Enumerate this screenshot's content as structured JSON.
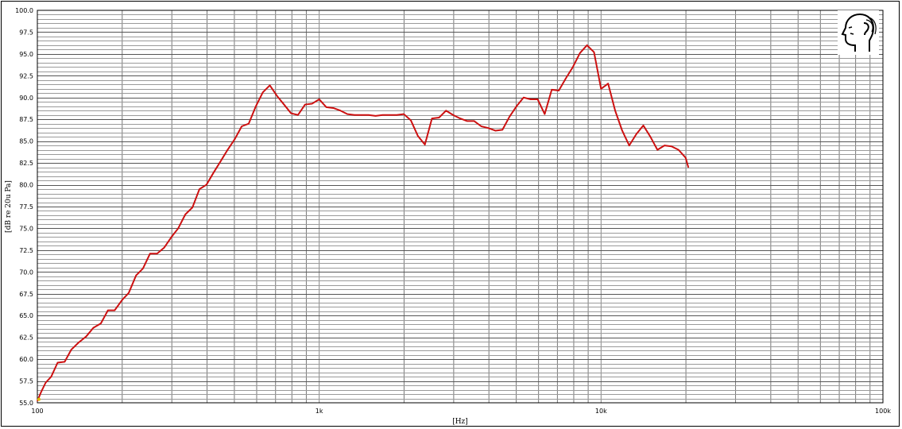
{
  "chart_data": {
    "type": "line",
    "xscale": "log",
    "xlim": [
      100,
      100000
    ],
    "ylim": [
      55.0,
      100.0
    ],
    "xlabel": "[Hz]",
    "ylabel": "[dB re 20u Pa]",
    "xticks": [
      {
        "value": 100,
        "label": "100"
      },
      {
        "value": 1000,
        "label": "1k"
      },
      {
        "value": 10000,
        "label": "10k"
      },
      {
        "value": 100000,
        "label": "100k"
      }
    ],
    "yticks": [
      "55.0",
      "57.5",
      "60.0",
      "62.5",
      "65.0",
      "67.5",
      "70.0",
      "72.5",
      "75.0",
      "77.5",
      "80.0",
      "82.5",
      "85.0",
      "87.5",
      "90.0",
      "92.5",
      "95.0",
      "97.5",
      "100.0"
    ],
    "grid": true,
    "series": [
      {
        "color": "#cc1111",
        "points": [
          [
            100,
            55.2
          ],
          [
            103,
            56.2
          ],
          [
            107,
            57.3
          ],
          [
            112,
            58.0
          ],
          [
            118,
            59.6
          ],
          [
            125,
            59.7
          ],
          [
            132,
            61.1
          ],
          [
            140,
            61.9
          ],
          [
            149,
            62.6
          ],
          [
            158,
            63.6
          ],
          [
            168,
            64.1
          ],
          [
            178,
            65.6
          ],
          [
            188,
            65.6
          ],
          [
            200,
            66.8
          ],
          [
            211,
            67.6
          ],
          [
            224,
            69.6
          ],
          [
            237,
            70.4
          ],
          [
            251,
            72.1
          ],
          [
            266,
            72.1
          ],
          [
            282,
            72.8
          ],
          [
            299,
            74.0
          ],
          [
            316,
            75.0
          ],
          [
            335,
            76.6
          ],
          [
            355,
            77.4
          ],
          [
            376,
            79.5
          ],
          [
            398,
            80.0
          ],
          [
            422,
            81.4
          ],
          [
            447,
            82.7
          ],
          [
            473,
            84.0
          ],
          [
            501,
            85.2
          ],
          [
            531,
            86.7
          ],
          [
            562,
            87.0
          ],
          [
            596,
            89.0
          ],
          [
            631,
            90.6
          ],
          [
            668,
            91.4
          ],
          [
            708,
            90.2
          ],
          [
            750,
            89.2
          ],
          [
            794,
            88.2
          ],
          [
            841,
            88.0
          ],
          [
            891,
            89.2
          ],
          [
            944,
            89.3
          ],
          [
            1000,
            89.8
          ],
          [
            1059,
            88.9
          ],
          [
            1122,
            88.8
          ],
          [
            1189,
            88.5
          ],
          [
            1259,
            88.1
          ],
          [
            1334,
            88.0
          ],
          [
            1413,
            88.0
          ],
          [
            1496,
            88.0
          ],
          [
            1585,
            87.9
          ],
          [
            1679,
            88.0
          ],
          [
            1778,
            88.0
          ],
          [
            1884,
            88.0
          ],
          [
            1995,
            88.1
          ],
          [
            2113,
            87.4
          ],
          [
            2239,
            85.6
          ],
          [
            2371,
            84.6
          ],
          [
            2512,
            87.6
          ],
          [
            2661,
            87.7
          ],
          [
            2818,
            88.5
          ],
          [
            2985,
            88.0
          ],
          [
            3162,
            87.6
          ],
          [
            3350,
            87.3
          ],
          [
            3548,
            87.3
          ],
          [
            3758,
            86.7
          ],
          [
            3981,
            86.5
          ],
          [
            4217,
            86.2
          ],
          [
            4467,
            86.3
          ],
          [
            4732,
            87.8
          ],
          [
            5012,
            89.0
          ],
          [
            5309,
            90.0
          ],
          [
            5623,
            89.8
          ],
          [
            5957,
            89.8
          ],
          [
            6310,
            88.1
          ],
          [
            6683,
            90.9
          ],
          [
            7079,
            90.8
          ],
          [
            7499,
            92.2
          ],
          [
            7943,
            93.5
          ],
          [
            8414,
            95.1
          ],
          [
            8913,
            96.0
          ],
          [
            9441,
            95.2
          ],
          [
            10000,
            91.0
          ],
          [
            10593,
            91.6
          ],
          [
            11220,
            88.5
          ],
          [
            11885,
            86.2
          ],
          [
            12589,
            84.5
          ],
          [
            13335,
            85.8
          ],
          [
            14125,
            86.8
          ],
          [
            14962,
            85.5
          ],
          [
            15849,
            84.0
          ],
          [
            16788,
            84.5
          ],
          [
            17783,
            84.4
          ],
          [
            18836,
            84.0
          ],
          [
            19953,
            83.1
          ],
          [
            20400,
            82.0
          ]
        ]
      }
    ]
  },
  "logo": {
    "icon": "head-ear-icon"
  }
}
